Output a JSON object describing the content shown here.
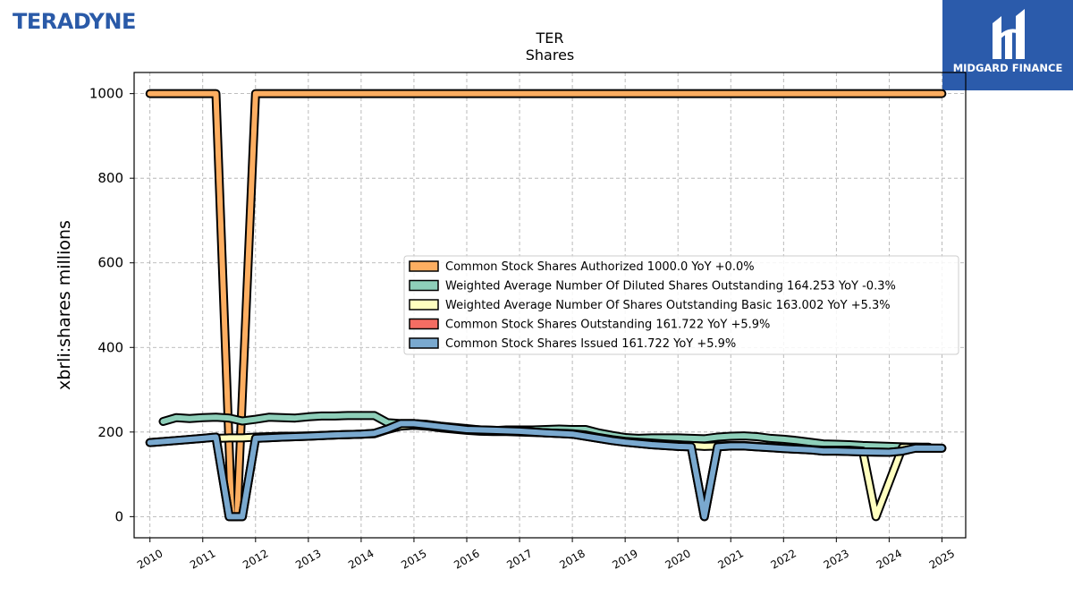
{
  "brand": {
    "logo_text": "TERADYNE",
    "badge_text": "MIDGARD FINANCE"
  },
  "chart_data": {
    "type": "line",
    "title": "TER",
    "subtitle": "Shares",
    "ylabel": "xbrli:shares millions",
    "xlabel": "",
    "xlim": [
      2009.7,
      2025.45
    ],
    "ylim": [
      -50,
      1050
    ],
    "yticks": [
      0,
      200,
      400,
      600,
      800,
      1000
    ],
    "xticks": [
      2010,
      2011,
      2012,
      2013,
      2014,
      2015,
      2016,
      2017,
      2018,
      2019,
      2020,
      2021,
      2022,
      2023,
      2024,
      2025
    ],
    "grid": true,
    "legend_position": "center-right",
    "series": [
      {
        "name": "Common Stock Shares Authorized",
        "legend": "Common Stock Shares Authorized  1000.0 YoY +0.0%",
        "color": "#fdae61",
        "points": [
          [
            2010.0,
            1000
          ],
          [
            2011.25,
            1000
          ],
          [
            2011.55,
            0
          ],
          [
            2011.65,
            0
          ],
          [
            2012.0,
            1000
          ],
          [
            2025.0,
            1000
          ]
        ]
      },
      {
        "name": "Weighted Average Number Of Diluted Shares Outstanding",
        "legend": "Weighted Average Number Of Diluted Shares Outstanding  164.253 YoY -0.3%",
        "color": "#8ecfb9",
        "points": [
          [
            2010.25,
            225
          ],
          [
            2010.5,
            234
          ],
          [
            2010.75,
            232
          ],
          [
            2011.0,
            234
          ],
          [
            2011.25,
            235
          ],
          [
            2011.5,
            233
          ],
          [
            2011.75,
            226
          ],
          [
            2012.0,
            230
          ],
          [
            2012.25,
            235
          ],
          [
            2012.5,
            234
          ],
          [
            2012.75,
            233
          ],
          [
            2013.0,
            236
          ],
          [
            2013.25,
            238
          ],
          [
            2013.5,
            238
          ],
          [
            2013.75,
            239
          ],
          [
            2014.0,
            239
          ],
          [
            2014.25,
            239
          ],
          [
            2014.5,
            222
          ],
          [
            2014.75,
            220
          ],
          [
            2015.0,
            220
          ],
          [
            2015.25,
            218
          ],
          [
            2015.5,
            214
          ],
          [
            2015.75,
            211
          ],
          [
            2016.0,
            208
          ],
          [
            2016.25,
            205
          ],
          [
            2016.5,
            203
          ],
          [
            2016.75,
            205
          ],
          [
            2017.0,
            205
          ],
          [
            2017.25,
            205
          ],
          [
            2017.5,
            206
          ],
          [
            2017.75,
            207
          ],
          [
            2018.0,
            206
          ],
          [
            2018.25,
            206
          ],
          [
            2018.5,
            198
          ],
          [
            2018.75,
            192
          ],
          [
            2019.0,
            187
          ],
          [
            2019.25,
            185
          ],
          [
            2019.5,
            186
          ],
          [
            2019.75,
            186
          ],
          [
            2020.0,
            186
          ],
          [
            2020.25,
            185
          ],
          [
            2020.5,
            184
          ],
          [
            2020.75,
            188
          ],
          [
            2021.0,
            190
          ],
          [
            2021.25,
            191
          ],
          [
            2021.5,
            189
          ],
          [
            2021.75,
            185
          ],
          [
            2022.0,
            183
          ],
          [
            2022.25,
            180
          ],
          [
            2022.5,
            176
          ],
          [
            2022.75,
            172
          ],
          [
            2023.0,
            171
          ],
          [
            2023.25,
            170
          ],
          [
            2023.5,
            168
          ],
          [
            2023.75,
            167
          ],
          [
            2024.0,
            166
          ],
          [
            2024.25,
            165
          ],
          [
            2024.5,
            164
          ],
          [
            2024.75,
            164.3
          ]
        ]
      },
      {
        "name": "Weighted Average Number Of Shares Outstanding Basic",
        "legend": "Weighted Average Number Of Shares Outstanding Basic  163.002 YoY +5.3%",
        "color": "#ffffbf",
        "points": [
          [
            2011.25,
            185
          ],
          [
            2011.5,
            186
          ],
          [
            2011.75,
            186
          ],
          [
            2012.0,
            188
          ],
          [
            2012.25,
            189
          ],
          [
            2012.5,
            190
          ],
          [
            2012.75,
            190
          ],
          [
            2013.0,
            191
          ],
          [
            2013.25,
            192
          ],
          [
            2013.5,
            193
          ],
          [
            2013.75,
            194
          ],
          [
            2014.0,
            195
          ],
          [
            2014.25,
            196
          ],
          [
            2014.5,
            206
          ],
          [
            2014.75,
            214
          ],
          [
            2015.0,
            216
          ],
          [
            2015.25,
            214
          ],
          [
            2015.5,
            210
          ],
          [
            2015.75,
            207
          ],
          [
            2016.0,
            204
          ],
          [
            2016.25,
            202
          ],
          [
            2016.5,
            201
          ],
          [
            2016.75,
            201
          ],
          [
            2017.0,
            200
          ],
          [
            2017.25,
            199
          ],
          [
            2017.5,
            198
          ],
          [
            2017.75,
            197
          ],
          [
            2018.0,
            196
          ],
          [
            2018.25,
            193
          ],
          [
            2018.5,
            187
          ],
          [
            2018.75,
            182
          ],
          [
            2019.0,
            178
          ],
          [
            2019.25,
            176
          ],
          [
            2019.5,
            174
          ],
          [
            2019.75,
            172
          ],
          [
            2020.0,
            170
          ],
          [
            2020.25,
            168
          ],
          [
            2020.5,
            166
          ],
          [
            2020.75,
            167
          ],
          [
            2021.0,
            168
          ],
          [
            2021.25,
            168
          ],
          [
            2021.5,
            166
          ],
          [
            2021.75,
            164
          ],
          [
            2022.0,
            162
          ],
          [
            2022.25,
            161
          ],
          [
            2022.5,
            159
          ],
          [
            2022.75,
            157
          ],
          [
            2023.0,
            157
          ],
          [
            2023.25,
            157
          ],
          [
            2023.5,
            155
          ],
          [
            2023.75,
            0
          ],
          [
            2024.25,
            163
          ],
          [
            2024.5,
            164
          ],
          [
            2024.75,
            163.0
          ]
        ]
      },
      {
        "name": "Common Stock Shares Outstanding",
        "legend": "Common Stock Shares Outstanding  161.722 YoY +5.9%",
        "color": "#f46d63",
        "points": [
          [
            2010.0,
            175
          ],
          [
            2010.5,
            180
          ],
          [
            2011.0,
            185
          ],
          [
            2011.25,
            188
          ],
          [
            2011.5,
            0
          ],
          [
            2011.75,
            0
          ],
          [
            2012.0,
            185
          ],
          [
            2012.5,
            188
          ],
          [
            2013.0,
            190
          ],
          [
            2013.5,
            193
          ],
          [
            2014.0,
            195
          ],
          [
            2014.25,
            197
          ],
          [
            2014.5,
            207
          ],
          [
            2014.75,
            220
          ],
          [
            2015.0,
            220
          ],
          [
            2015.5,
            213
          ],
          [
            2016.0,
            206
          ],
          [
            2016.5,
            204
          ],
          [
            2017.0,
            202
          ],
          [
            2017.5,
            198
          ],
          [
            2018.0,
            195
          ],
          [
            2018.5,
            185
          ],
          [
            2018.75,
            180
          ],
          [
            2019.0,
            176
          ],
          [
            2019.5,
            170
          ],
          [
            2020.0,
            166
          ],
          [
            2020.25,
            165
          ],
          [
            2020.5,
            0
          ],
          [
            2020.75,
            165
          ],
          [
            2021.0,
            167
          ],
          [
            2021.25,
            167
          ],
          [
            2021.5,
            165
          ],
          [
            2021.75,
            163
          ],
          [
            2022.0,
            161
          ],
          [
            2022.5,
            158
          ],
          [
            2022.75,
            155
          ],
          [
            2023.0,
            155
          ],
          [
            2023.5,
            153
          ],
          [
            2024.0,
            152
          ],
          [
            2024.25,
            155
          ],
          [
            2024.5,
            162
          ],
          [
            2025.0,
            161.7
          ]
        ]
      },
      {
        "name": "Common Stock Shares Issued",
        "legend": "Common Stock Shares Issued  161.722 YoY +5.9%",
        "color": "#7aa9cf",
        "points": [
          [
            2010.0,
            175
          ],
          [
            2010.5,
            180
          ],
          [
            2011.0,
            185
          ],
          [
            2011.25,
            188
          ],
          [
            2011.5,
            0
          ],
          [
            2011.75,
            0
          ],
          [
            2012.0,
            185
          ],
          [
            2012.5,
            188
          ],
          [
            2013.0,
            190
          ],
          [
            2013.5,
            193
          ],
          [
            2014.0,
            195
          ],
          [
            2014.25,
            197
          ],
          [
            2014.5,
            207
          ],
          [
            2014.75,
            220
          ],
          [
            2015.0,
            220
          ],
          [
            2015.5,
            213
          ],
          [
            2016.0,
            206
          ],
          [
            2016.5,
            204
          ],
          [
            2017.0,
            202
          ],
          [
            2017.5,
            198
          ],
          [
            2018.0,
            195
          ],
          [
            2018.5,
            185
          ],
          [
            2018.75,
            180
          ],
          [
            2019.0,
            176
          ],
          [
            2019.5,
            170
          ],
          [
            2020.0,
            166
          ],
          [
            2020.25,
            165
          ],
          [
            2020.5,
            0
          ],
          [
            2020.75,
            165
          ],
          [
            2021.0,
            167
          ],
          [
            2021.25,
            167
          ],
          [
            2021.5,
            165
          ],
          [
            2021.75,
            163
          ],
          [
            2022.0,
            161
          ],
          [
            2022.5,
            158
          ],
          [
            2022.75,
            155
          ],
          [
            2023.0,
            155
          ],
          [
            2023.5,
            153
          ],
          [
            2024.0,
            152
          ],
          [
            2024.25,
            155
          ],
          [
            2024.5,
            162
          ],
          [
            2025.0,
            161.7
          ]
        ]
      }
    ]
  }
}
